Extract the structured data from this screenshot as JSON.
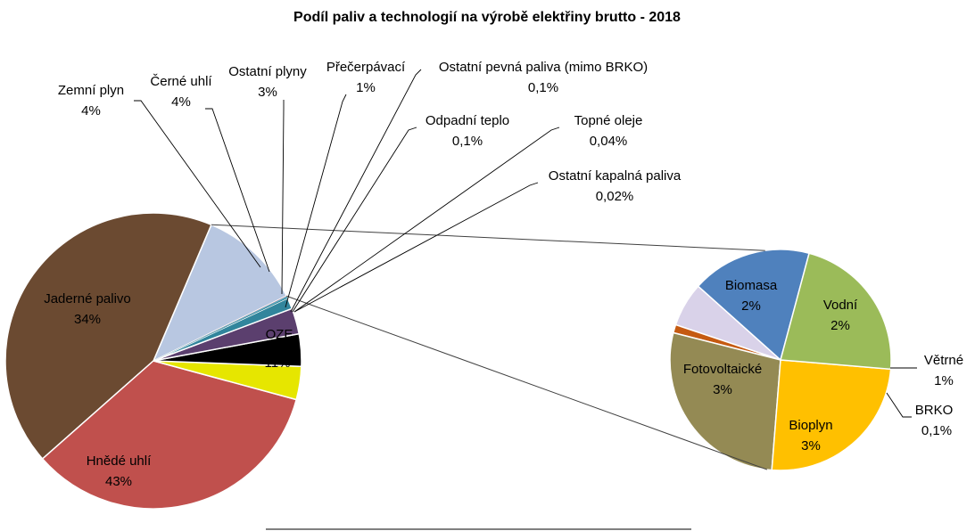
{
  "chart_data": {
    "type": "bar-of-pie",
    "title": "Podíl paliv a technologií na výrobě elektřiny brutto - 2018",
    "main_pie": [
      {
        "name": "OZE",
        "label": "11%",
        "value": 11.3,
        "color": "#b8c7e1"
      },
      {
        "name": "Hnědé uhlí",
        "label": "43%",
        "value": 42.6,
        "color": "#6b4a31"
      },
      {
        "name": "Jaderné palivo",
        "label": "34%",
        "value": 34.0,
        "color": "#c0504d"
      },
      {
        "name": "Zemní plyn",
        "label": "4%",
        "value": 3.6,
        "color": "#e6e600"
      },
      {
        "name": "Černé uhlí",
        "label": "4%",
        "value": 3.5,
        "color": "#000000"
      },
      {
        "name": "Ostatní plyny",
        "label": "3%",
        "value": 2.8,
        "color": "#5b3f6e"
      },
      {
        "name": "Přečerpávací",
        "label": "1%",
        "value": 1.2,
        "color": "#31859c"
      },
      {
        "name": "Ostatní pevná paliva (mimo BRKO)",
        "label": "0,1%",
        "value": 0.1,
        "color": "#2a7f8f"
      },
      {
        "name": "Odpadní teplo",
        "label": "0,1%",
        "value": 0.1,
        "color": "#4bacc6"
      },
      {
        "name": "Topné oleje",
        "label": "0,04%",
        "value": 0.04,
        "color": "#8064a2"
      },
      {
        "name": "Ostatní kapalná paliva",
        "label": "0,02%",
        "value": 0.02,
        "color": "#f79646"
      }
    ],
    "secondary_pie": [
      {
        "name": "Vodní",
        "label": "2%",
        "value": 1.9,
        "color": "#4f81bd"
      },
      {
        "name": "Větrné",
        "label": "1%",
        "value": 0.7,
        "color": "#d9d2e9"
      },
      {
        "name": "BRKO",
        "label": "0,1%",
        "value": 0.13,
        "color": "#c55a11"
      },
      {
        "name": "Bioplyn",
        "label": "3%",
        "value": 3.0,
        "color": "#948a54"
      },
      {
        "name": "Fotovoltaické",
        "label": "3%",
        "value": 2.7,
        "color": "#ffc000"
      },
      {
        "name": "Biomasa",
        "label": "2%",
        "value": 2.4,
        "color": "#9bbb59"
      }
    ],
    "connector_color": "#404040",
    "line_color": "#000000"
  }
}
